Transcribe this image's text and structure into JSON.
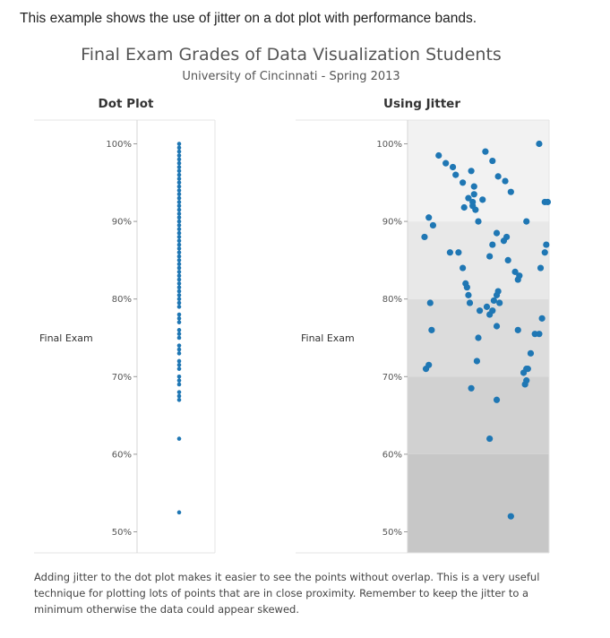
{
  "intro_text": "This example shows the use of jitter on a dot plot with performance bands.",
  "title": "Final Exam Grades of Data Visualization Students",
  "subtitle": "University of Cincinnati - Spring 2013",
  "caption": "Adding jitter to the dot plot makes it easier to see the points without overlap. This is a very useful technique for plotting lots of points that are in close proximity. Remember to keep the jitter to a minimum otherwise the data could appear skewed.",
  "colors": {
    "dot": "#1f77b4",
    "band_90_100": "#f2f2f2",
    "band_80_90": "#e8e8e8",
    "band_70_80": "#dcdcdc",
    "band_60_70": "#d1d1d1",
    "band_50_60": "#c7c7c7"
  },
  "chart_data": [
    {
      "type": "scatter",
      "title": "Dot Plot",
      "ylabel": "Final Exam",
      "ylim": [
        50,
        100
      ],
      "yticks": [
        "50%",
        "60%",
        "70%",
        "80%",
        "90%",
        "100%"
      ],
      "y": [
        100,
        99.5,
        99,
        98.5,
        98,
        97.5,
        97,
        96.5,
        96,
        95.5,
        95,
        94.5,
        94,
        93.5,
        93,
        92.5,
        92,
        91.5,
        91,
        90.5,
        90,
        89.5,
        89,
        88.5,
        88,
        87.5,
        87,
        86.5,
        86,
        85.5,
        85,
        84.5,
        84,
        83.5,
        83,
        82.5,
        82,
        81.5,
        81,
        80.5,
        80,
        79.5,
        79,
        78,
        77.5,
        77,
        76,
        75.5,
        75,
        74,
        73.5,
        73,
        72,
        71.5,
        71,
        70,
        69.5,
        69,
        68,
        67.5,
        67,
        62,
        52.5
      ]
    },
    {
      "type": "scatter",
      "title": "Using Jitter",
      "ylabel": "Final Exam",
      "ylim": [
        50,
        100
      ],
      "yticks": [
        "50%",
        "60%",
        "70%",
        "80%",
        "90%",
        "100%"
      ],
      "bands": [
        [
          90,
          100
        ],
        [
          80,
          90
        ],
        [
          70,
          80
        ],
        [
          60,
          70
        ],
        [
          50,
          60
        ]
      ],
      "x": [
        0.22,
        0.55,
        0.6,
        0.93,
        0.27,
        0.32,
        0.34,
        0.39,
        0.45,
        0.64,
        0.47,
        0.43,
        0.46,
        0.47,
        0.69,
        0.53,
        0.46,
        0.73,
        0.4,
        0.48,
        0.97,
        0.99,
        0.5,
        0.7,
        0.15,
        0.18,
        0.6,
        0.12,
        0.63,
        0.84,
        0.3,
        0.36,
        0.58,
        0.68,
        0.97,
        0.71,
        0.39,
        0.76,
        0.94,
        0.98,
        0.79,
        0.78,
        0.41,
        0.64,
        0.42,
        0.63,
        0.43,
        0.65,
        0.61,
        0.6,
        0.56,
        0.16,
        0.44,
        0.51,
        0.58,
        0.95,
        0.63,
        0.78,
        0.17,
        0.9,
        0.87,
        0.93,
        0.5,
        0.84,
        0.13,
        0.15,
        0.49,
        0.45,
        0.84,
        0.82,
        0.85,
        0.63,
        0.83,
        0.58,
        0.73
      ],
      "y": [
        98.5,
        99.0,
        97.8,
        100.0,
        97.5,
        97.0,
        96.0,
        95.0,
        96.5,
        95.8,
        94.5,
        93.0,
        92.5,
        93.5,
        95.2,
        92.8,
        92.0,
        93.8,
        91.8,
        91.5,
        92.5,
        92.5,
        90.0,
        88.0,
        90.5,
        89.5,
        87.0,
        88.0,
        88.5,
        90.0,
        86.0,
        86.0,
        85.5,
        87.5,
        86.0,
        85.0,
        84.0,
        83.5,
        84.0,
        87.0,
        83.0,
        82.5,
        82.0,
        81.0,
        81.5,
        80.5,
        80.5,
        79.5,
        79.8,
        78.5,
        79.0,
        79.5,
        79.5,
        78.5,
        78.0,
        77.5,
        76.5,
        76.0,
        76.0,
        75.5,
        73.0,
        75.5,
        75.0,
        71.0,
        71.0,
        71.5,
        72.0,
        68.5,
        69.5,
        70.5,
        71.0,
        67.0,
        69.0,
        62.0,
        52.0
      ]
    }
  ]
}
